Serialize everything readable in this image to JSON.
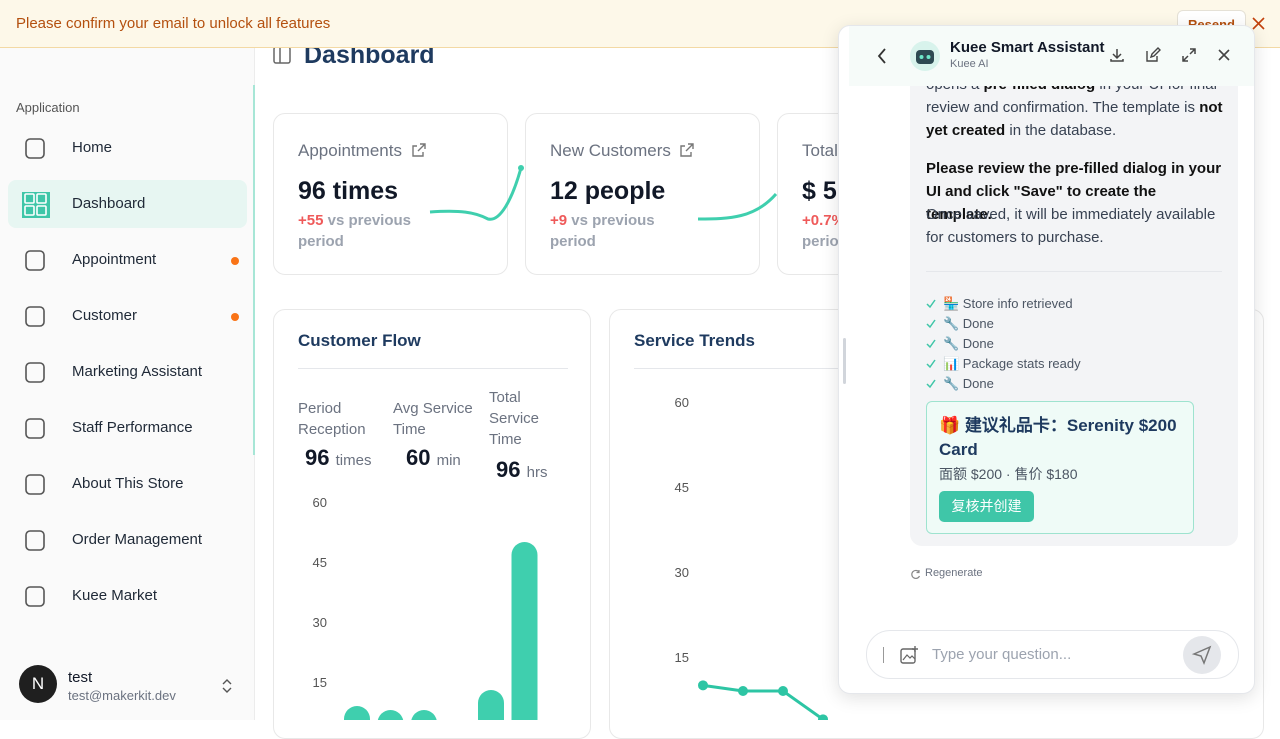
{
  "banner": {
    "message": "Please confirm your email to unlock all features",
    "action": "Resend"
  },
  "sidebar": {
    "section": "Application",
    "items": [
      "Home",
      "Dashboard",
      "Appointment",
      "Customer",
      "Marketing Assistant",
      "Staff Performance",
      "About This Store",
      "Order Management",
      "Kuee Market"
    ],
    "user": {
      "initial": "N",
      "name": "test",
      "email": "test@makerkit.dev"
    }
  },
  "page": {
    "title": "Dashboard"
  },
  "cards": [
    {
      "title": "Appointments",
      "value": "96 times",
      "change": "+55",
      "note": "vs previous period"
    },
    {
      "title": "New Customers",
      "value": "12 people",
      "change": "+9",
      "note": "vs previous period"
    },
    {
      "title": "Total",
      "value": "$ 5",
      "change": "+0.7%",
      "note": "period"
    }
  ],
  "customer_flow": {
    "title": "Customer Flow",
    "stats": [
      {
        "label": "Period Reception",
        "value": "96",
        "unit": "times"
      },
      {
        "label": "Avg Service Time",
        "value": "60",
        "unit": "min"
      },
      {
        "label": "Total Service Time",
        "value": "96",
        "unit": "hrs"
      }
    ],
    "chart": {
      "type": "bar",
      "categories": [
        null,
        null,
        null,
        null,
        null,
        null
      ],
      "values": [
        9,
        8,
        8,
        0,
        13,
        50
      ],
      "color": "#3fcfae",
      "ylim": [
        0,
        60
      ],
      "yticks": [
        15,
        30,
        45,
        60
      ]
    }
  },
  "service_trends": {
    "title": "Service Trends",
    "chart": {
      "type": "line",
      "categories": [
        null,
        null,
        null,
        null
      ],
      "values": [
        10,
        9,
        9,
        4
      ],
      "color": "#2dc5a4",
      "ylim": [
        0,
        60
      ],
      "yticks": [
        15,
        30,
        45,
        60
      ]
    }
  },
  "assistant": {
    "name": "Kuee Smart Assistant",
    "subtitle": "Kuee AI",
    "intro": [
      "opens a ",
      "pre-filled dialog",
      " in your UI for final review and confirmation. The template is ",
      "not yet created",
      " in the database."
    ],
    "review": "Please review the pre-filled dialog in your UI and click \"Save\" to create the template.",
    "after": "Once saved, it will be immediately available for customers to purchase.",
    "steps": [
      "🏪 Store info retrieved",
      "🔧 Done",
      "🔧 Done",
      "📊 Package stats ready",
      "🔧 Done"
    ],
    "gift": {
      "title": "🎁 建议礼品卡：Serenity $200 Card",
      "detail": "面额 $200 · 售价 $180",
      "button": "复核并创建"
    },
    "regenerate": "Regenerate",
    "placeholder": "Type your question..."
  }
}
